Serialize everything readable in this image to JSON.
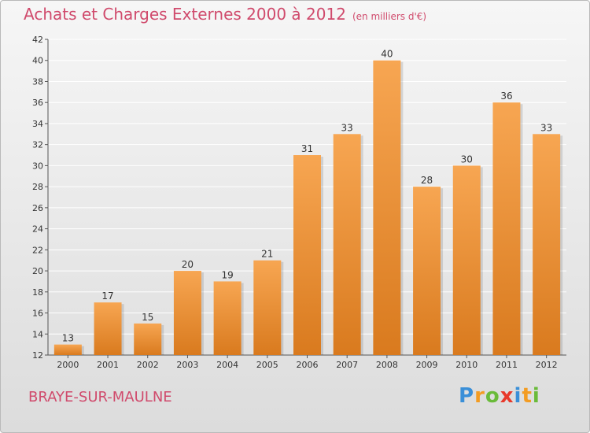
{
  "title": "Achats et Charges Externes 2000 à 2012",
  "unit": "(en milliers d'€)",
  "place": "BRAYE-SUR-MAULNE",
  "logo": [
    "P",
    "r",
    "o",
    "x",
    "i",
    "t",
    "i"
  ],
  "colors": {
    "accent": "#d04a6c",
    "bar_top": "#f7a652",
    "bar_bottom": "#d97a1e",
    "grid": "#ffffff"
  },
  "chart_data": {
    "type": "bar",
    "categories": [
      "2000",
      "2001",
      "2002",
      "2003",
      "2004",
      "2005",
      "2006",
      "2007",
      "2008",
      "2009",
      "2010",
      "2011",
      "2012"
    ],
    "values": [
      13,
      17,
      15,
      20,
      19,
      21,
      31,
      33,
      40,
      28,
      30,
      36,
      33
    ],
    "ylim": [
      12,
      42
    ],
    "yticks": [
      12,
      14,
      16,
      18,
      20,
      22,
      24,
      26,
      28,
      30,
      32,
      34,
      36,
      38,
      40,
      42
    ],
    "grid": true,
    "data_labels": true
  }
}
